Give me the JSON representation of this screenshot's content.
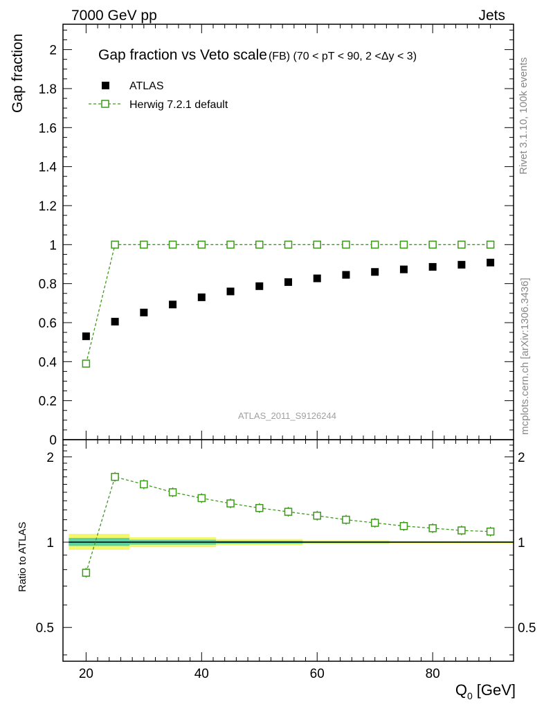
{
  "header": {
    "left": "7000 GeV pp",
    "right": "Jets"
  },
  "side": {
    "rivet": "Rivet 3.1.10,  100k events",
    "mcplots": "mcplots.cern.ch [arXiv:1306.3436]"
  },
  "colors": {
    "herwig": "#3a9a18",
    "band_inner": "#5ed3a2",
    "band_outer": "#f4f76a"
  },
  "chart_data": {
    "type": "scatter",
    "title": "Gap fraction vs Veto scale",
    "subtitle": "(FB) (70 < pT <  90, 2 <Δy < 3)",
    "watermark": "ATLAS_2011_S9126244",
    "xlabel": "Q",
    "xlabel_sub": "0",
    "xlabel_unit": "[GeV]",
    "ylabel": "Gap fraction",
    "ratio_ylabel": "Ratio to ATLAS",
    "xlim": [
      16,
      94
    ],
    "ylim": [
      0,
      2.13
    ],
    "ratio_ylim": [
      0.38,
      2.3
    ],
    "x_ticks": [
      20,
      40,
      60,
      80
    ],
    "y_ticks": [
      "0",
      "0.2",
      "0.4",
      "0.6",
      "0.8",
      "1",
      "1.2",
      "1.4",
      "1.6",
      "1.8",
      "2"
    ],
    "ratio_ticks": [
      "0.5",
      "1",
      "2"
    ],
    "x": [
      20,
      25,
      30,
      35,
      40,
      45,
      50,
      55,
      60,
      65,
      70,
      75,
      80,
      85,
      90
    ],
    "series": [
      {
        "name": "ATLAS",
        "values": [
          0.53,
          0.605,
          0.652,
          0.693,
          0.73,
          0.76,
          0.787,
          0.808,
          0.827,
          0.845,
          0.86,
          0.873,
          0.886,
          0.897,
          0.908
        ]
      },
      {
        "name": "Herwig 7.2.1 default",
        "values": [
          0.39,
          1.0,
          1.0,
          1.0,
          1.0,
          1.0,
          1.0,
          1.0,
          1.0,
          1.0,
          1.0,
          1.0,
          1.0,
          1.0,
          1.0
        ]
      }
    ],
    "ratio_values": [
      0.78,
      1.7,
      1.6,
      1.5,
      1.43,
      1.37,
      1.32,
      1.28,
      1.24,
      1.2,
      1.17,
      1.14,
      1.12,
      1.1,
      1.09
    ],
    "band_edges": [
      17,
      27.5,
      42.5,
      57.5,
      72.5,
      94
    ],
    "band_outer": [
      [
        0.94,
        1.07
      ],
      [
        0.96,
        1.04
      ],
      [
        0.975,
        1.025
      ],
      [
        0.985,
        1.015
      ],
      [
        0.99,
        1.01
      ]
    ],
    "band_inner": [
      [
        0.97,
        1.035
      ],
      [
        0.98,
        1.02
      ],
      [
        0.988,
        1.012
      ],
      [
        0.993,
        1.007
      ],
      [
        0.995,
        1.005
      ]
    ]
  }
}
